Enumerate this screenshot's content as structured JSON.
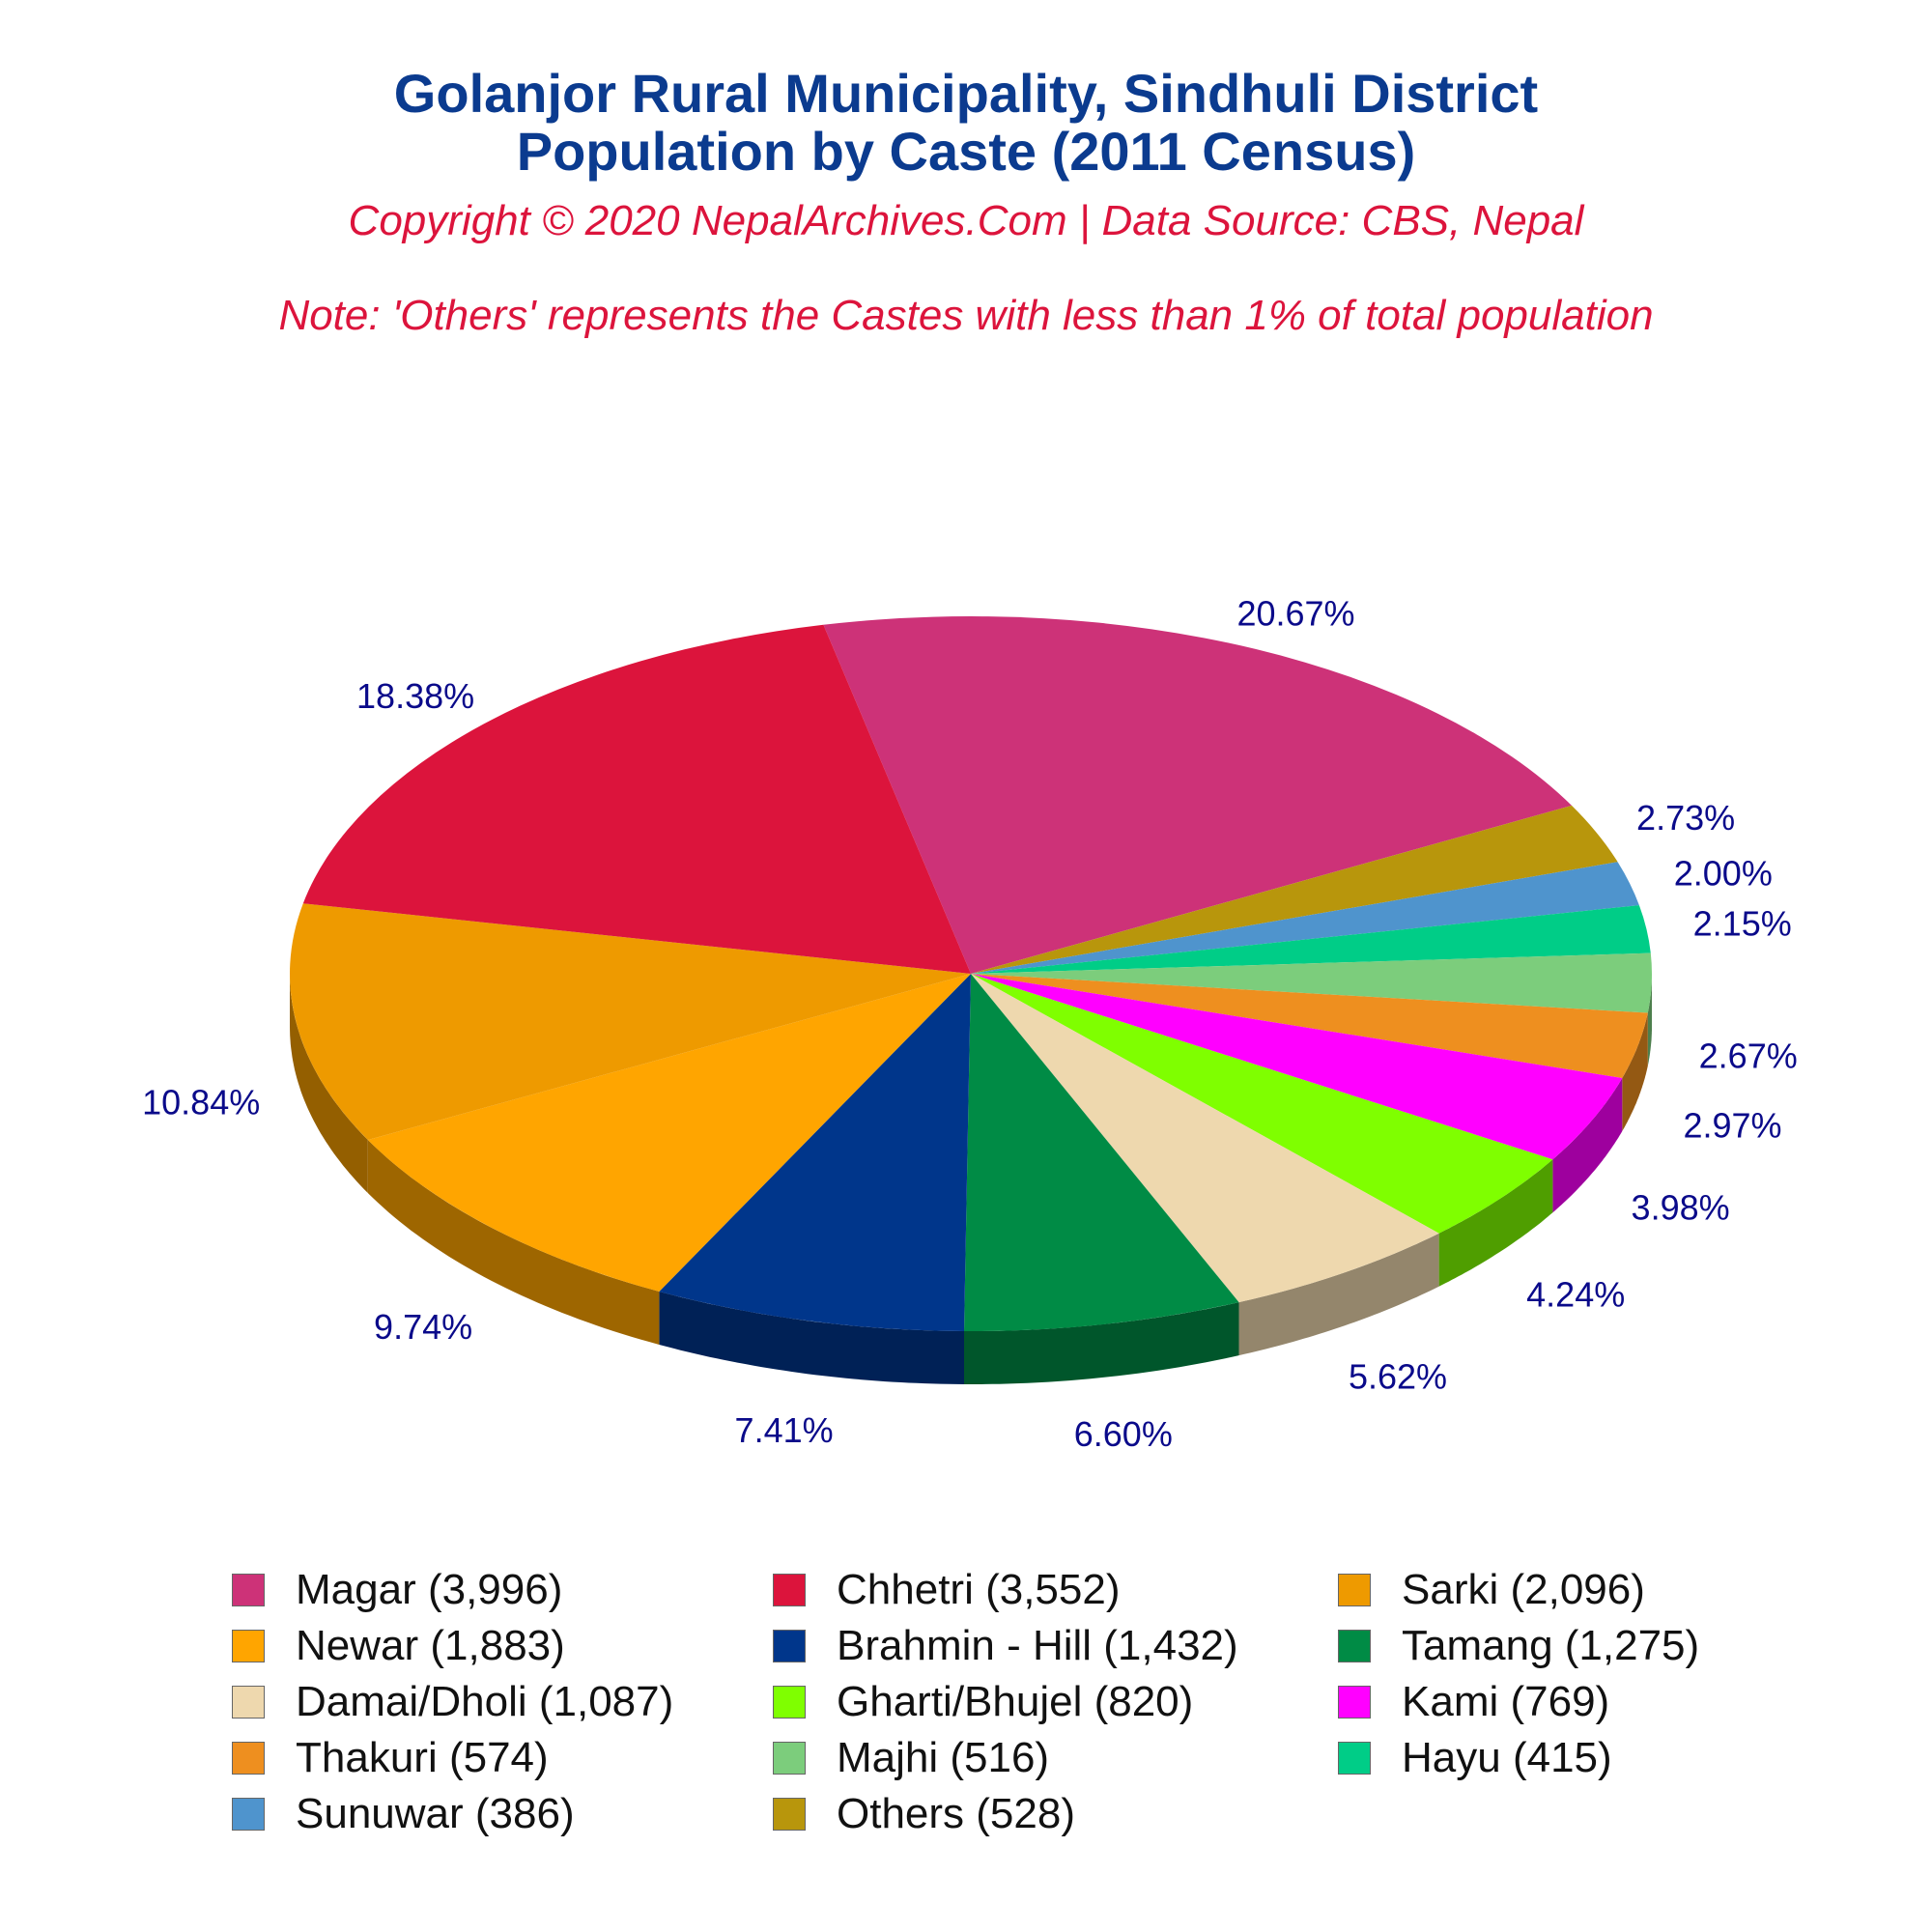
{
  "header": {
    "title_line1": "Golanjor Rural Municipality, Sindhuli District",
    "title_line2": "Population by Caste (2011 Census)",
    "copyright": "Copyright © 2020 NepalArchives.Com | Data Source: CBS, Nepal",
    "note": "Note: 'Others' represents the Castes with less than 1% of total population"
  },
  "chart_data": {
    "type": "pie",
    "style": "3d",
    "categories": [
      "Magar",
      "Others",
      "Sunuwar",
      "Hayu",
      "Majhi",
      "Thakuri",
      "Kami",
      "Gharti/Bhujel",
      "Damai/Dholi",
      "Tamang",
      "Brahmin - Hill",
      "Newar",
      "Sarki",
      "Chhetri"
    ],
    "values": [
      3996,
      528,
      386,
      415,
      516,
      574,
      769,
      820,
      1087,
      1275,
      1432,
      1883,
      2096,
      3552
    ],
    "percent_labels": [
      "20.67%",
      "2.73%",
      "2.00%",
      "2.15%",
      "2.67%",
      "2.97%",
      "3.98%",
      "4.24%",
      "5.62%",
      "6.60%",
      "7.41%",
      "9.74%",
      "10.84%",
      "18.38%"
    ],
    "colors": [
      "#cd3278",
      "#b8960c",
      "#4f94cd",
      "#00cd87",
      "#7ccd7c",
      "#ee8f1f",
      "#ff00ff",
      "#7fff00",
      "#eed8ae",
      "#008b45",
      "#00368b",
      "#ffa500",
      "#ee9a00",
      "#dc143c"
    ],
    "legend_position": "bottom"
  },
  "legend": {
    "items": [
      {
        "label": "Magar (3,996)",
        "color": "#cd3278"
      },
      {
        "label": "Chhetri (3,552)",
        "color": "#dc143c"
      },
      {
        "label": "Sarki (2,096)",
        "color": "#ee9a00"
      },
      {
        "label": "Newar (1,883)",
        "color": "#ffa500"
      },
      {
        "label": "Brahmin - Hill (1,432)",
        "color": "#00368b"
      },
      {
        "label": "Tamang (1,275)",
        "color": "#008b45"
      },
      {
        "label": "Damai/Dholi (1,087)",
        "color": "#eed8ae"
      },
      {
        "label": "Gharti/Bhujel (820)",
        "color": "#7fff00"
      },
      {
        "label": "Kami (769)",
        "color": "#ff00ff"
      },
      {
        "label": "Thakuri (574)",
        "color": "#ee8f1f"
      },
      {
        "label": "Majhi (516)",
        "color": "#7ccd7c"
      },
      {
        "label": "Hayu (415)",
        "color": "#00cd87"
      },
      {
        "label": "Sunuwar (386)",
        "color": "#4f94cd"
      },
      {
        "label": "Others (528)",
        "color": "#b8960c"
      }
    ]
  }
}
